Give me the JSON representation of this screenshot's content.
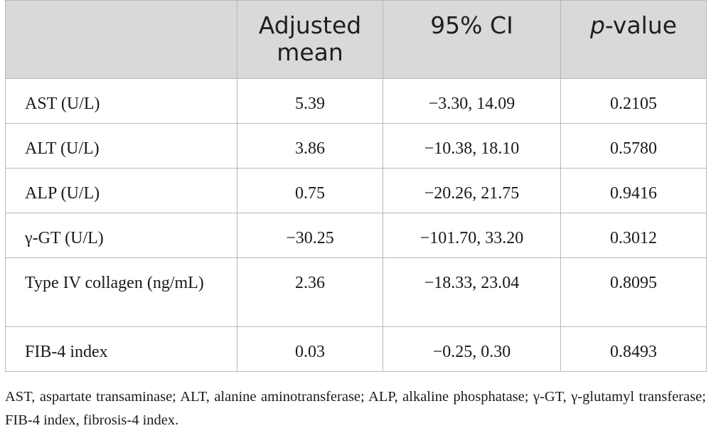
{
  "table": {
    "headers": {
      "col1": "",
      "col2": "Adjusted mean",
      "col3": "95% CI",
      "col4_italic": "p",
      "col4_rest": "-value"
    },
    "rows": [
      {
        "label": "AST (U/L)",
        "mean": "5.39",
        "ci": "−3.30, 14.09",
        "p": "0.2105"
      },
      {
        "label": "ALT (U/L)",
        "mean": "3.86",
        "ci": "−10.38, 18.10",
        "p": "0.5780"
      },
      {
        "label": "ALP (U/L)",
        "mean": "0.75",
        "ci": "−20.26, 21.75",
        "p": "0.9416"
      },
      {
        "label": "γ-GT (U/L)",
        "mean": "−30.25",
        "ci": "−101.70, 33.20",
        "p": "0.3012"
      },
      {
        "label": "Type IV collagen (ng/mL)",
        "mean": "2.36",
        "ci": "−18.33, 23.04",
        "p": "0.8095"
      },
      {
        "label": "FIB-4 index",
        "mean": "0.03",
        "ci": "−0.25, 0.30",
        "p": "0.8493"
      }
    ]
  },
  "footnote": "AST, aspartate transaminase; ALT, alanine aminotransferase; ALP, alkaline phosphatase; γ-GT, γ-glutamyl transferase; FIB-4 index, fibrosis-4 index."
}
